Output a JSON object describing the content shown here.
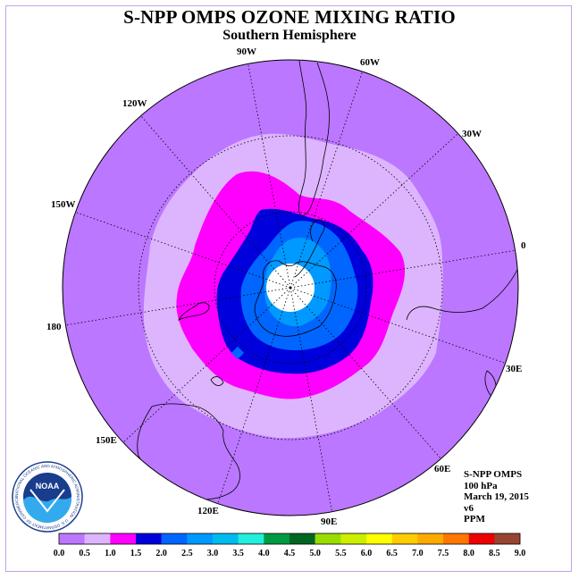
{
  "title": "S-NPP OMPS OZONE MIXING RATIO",
  "subtitle": "Southern Hemisphere",
  "logo": {
    "text": "NOAA",
    "ring_text": "NATIONAL OCEANIC AND ATMOSPHERIC ADMINISTRATION · U.S. DEPARTMENT OF COMMERCE"
  },
  "longitude_labels": [
    {
      "text": "90W"
    },
    {
      "text": "60W"
    },
    {
      "text": "30W"
    },
    {
      "text": "0"
    },
    {
      "text": "30E"
    },
    {
      "text": "60E"
    },
    {
      "text": "90E"
    },
    {
      "text": "120E"
    },
    {
      "text": "150E"
    },
    {
      "text": "180"
    },
    {
      "text": "150W"
    },
    {
      "text": "120W"
    }
  ],
  "info": {
    "instrument": "S-NPP OMPS",
    "level": "100 hPa",
    "date": "March 19, 2015",
    "version": "v6",
    "units": "PPM"
  },
  "colorbar": {
    "ticks": [
      "0.0",
      "0.5",
      "1.0",
      "1.5",
      "2.0",
      "2.5",
      "3.0",
      "3.5",
      "4.0",
      "4.5",
      "5.0",
      "5.5",
      "6.0",
      "6.5",
      "7.0",
      "7.5",
      "8.0",
      "8.5",
      "9.0"
    ],
    "colors": [
      "#bb77ff",
      "#ddb5ff",
      "#ff00ff",
      "#0000dd",
      "#0066ff",
      "#0099ff",
      "#00bbee",
      "#22eedd",
      "#009944",
      "#006622",
      "#99dd00",
      "#ccee00",
      "#ffff00",
      "#ffcc00",
      "#ffaa00",
      "#ff7700",
      "#ee0000",
      "#994433"
    ]
  },
  "colors": {
    "bg_level": "#bb77ff",
    "level_0_5": "#ddb5ff",
    "level_1_0": "#ff00ff",
    "level_1_5": "#0000dd",
    "level_2_0": "#0066ff",
    "level_2_5": "#0099ff",
    "pole_hole": "#ffffff"
  }
}
